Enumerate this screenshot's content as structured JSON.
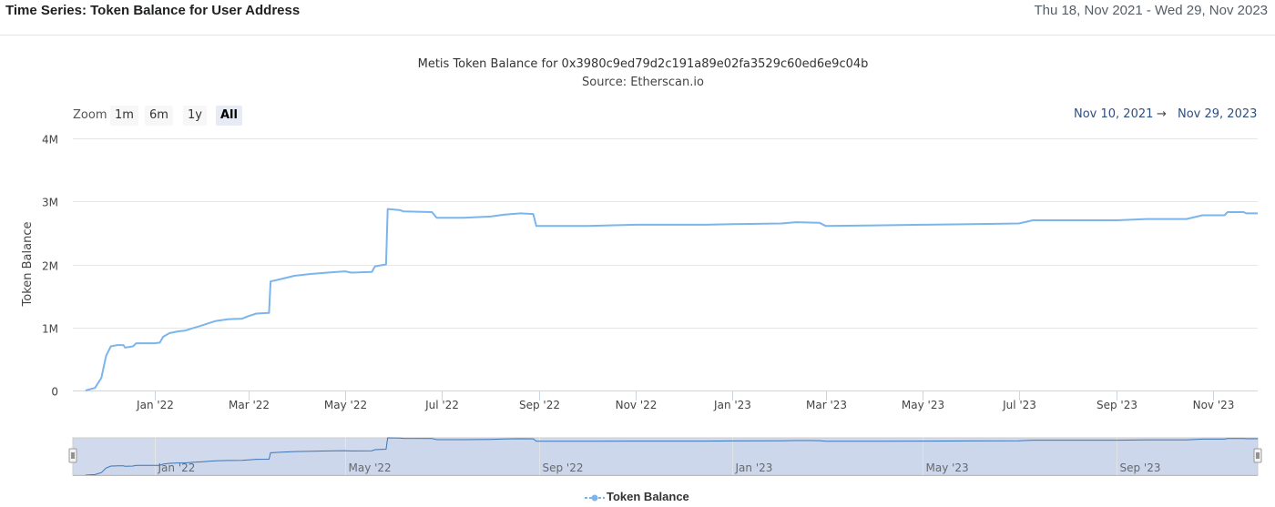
{
  "header": {
    "title": "Time Series: Token Balance for User Address",
    "date_range": "Thu 18, Nov 2021 - Wed 29, Nov 2023"
  },
  "range_selector": {
    "zoom_label": "Zoom",
    "buttons": [
      "1m",
      "6m",
      "1y",
      "All"
    ],
    "active": "All",
    "from": "Nov 10, 2021",
    "arrow": "→",
    "to": "Nov 29, 2023"
  },
  "colors": {
    "series": "#7cb5ec",
    "navigator_fill": "#ccd6eb",
    "grid": "#e6e6e6"
  },
  "chart_data": {
    "type": "line",
    "title": "Metis Token Balance for 0x3980c9ed79d2c191a89e02fa3529c60ed6e9c04b",
    "subtitle": "Source: Etherscan.io",
    "ylabel": "Token Balance",
    "xlabel": "",
    "ylim": [
      0,
      4000000
    ],
    "xlim": [
      "2021-11-10",
      "2023-11-29"
    ],
    "y_ticks": [
      {
        "value": 0,
        "label": "0"
      },
      {
        "value": 1000000,
        "label": "1M"
      },
      {
        "value": 2000000,
        "label": "2M"
      },
      {
        "value": 3000000,
        "label": "3M"
      },
      {
        "value": 4000000,
        "label": "4M"
      }
    ],
    "x_ticks": [
      {
        "date": "2022-01-01",
        "label": "Jan '22"
      },
      {
        "date": "2022-03-01",
        "label": "Mar '22"
      },
      {
        "date": "2022-05-01",
        "label": "May '22"
      },
      {
        "date": "2022-07-01",
        "label": "Jul '22"
      },
      {
        "date": "2022-09-01",
        "label": "Sep '22"
      },
      {
        "date": "2022-11-01",
        "label": "Nov '22"
      },
      {
        "date": "2023-01-01",
        "label": "Jan '23"
      },
      {
        "date": "2023-03-01",
        "label": "Mar '23"
      },
      {
        "date": "2023-05-01",
        "label": "May '23"
      },
      {
        "date": "2023-07-01",
        "label": "Jul '23"
      },
      {
        "date": "2023-09-01",
        "label": "Sep '23"
      },
      {
        "date": "2023-11-01",
        "label": "Nov '23"
      }
    ],
    "navigator_ticks": [
      {
        "date": "2022-01-01",
        "label": "Jan '22"
      },
      {
        "date": "2022-05-01",
        "label": "May '22"
      },
      {
        "date": "2022-09-01",
        "label": "Sep '22"
      },
      {
        "date": "2023-01-01",
        "label": "Jan '23"
      },
      {
        "date": "2023-05-01",
        "label": "May '23"
      },
      {
        "date": "2023-09-01",
        "label": "Sep '23"
      }
    ],
    "grid": true,
    "legend": "bottom-center",
    "series": [
      {
        "name": "Token Balance",
        "points": [
          [
            "2021-11-18",
            0
          ],
          [
            "2021-11-24",
            40000
          ],
          [
            "2021-11-28",
            200000
          ],
          [
            "2021-12-01",
            550000
          ],
          [
            "2021-12-04",
            700000
          ],
          [
            "2021-12-08",
            720000
          ],
          [
            "2021-12-12",
            720000
          ],
          [
            "2021-12-13",
            680000
          ],
          [
            "2021-12-18",
            700000
          ],
          [
            "2021-12-20",
            750000
          ],
          [
            "2022-01-01",
            750000
          ],
          [
            "2022-01-04",
            760000
          ],
          [
            "2022-01-06",
            850000
          ],
          [
            "2022-01-10",
            910000
          ],
          [
            "2022-01-16",
            940000
          ],
          [
            "2022-01-20",
            950000
          ],
          [
            "2022-01-25",
            990000
          ],
          [
            "2022-01-29",
            1020000
          ],
          [
            "2022-02-03",
            1060000
          ],
          [
            "2022-02-08",
            1100000
          ],
          [
            "2022-02-16",
            1130000
          ],
          [
            "2022-02-25",
            1140000
          ],
          [
            "2022-03-01",
            1180000
          ],
          [
            "2022-03-06",
            1220000
          ],
          [
            "2022-03-14",
            1230000
          ],
          [
            "2022-03-15",
            1730000
          ],
          [
            "2022-03-22",
            1770000
          ],
          [
            "2022-03-30",
            1820000
          ],
          [
            "2022-04-10",
            1850000
          ],
          [
            "2022-04-20",
            1870000
          ],
          [
            "2022-05-01",
            1890000
          ],
          [
            "2022-05-05",
            1870000
          ],
          [
            "2022-05-18",
            1880000
          ],
          [
            "2022-05-20",
            1970000
          ],
          [
            "2022-05-27",
            2000000
          ],
          [
            "2022-05-28",
            2880000
          ],
          [
            "2022-06-05",
            2860000
          ],
          [
            "2022-06-07",
            2840000
          ],
          [
            "2022-06-25",
            2830000
          ],
          [
            "2022-06-28",
            2740000
          ],
          [
            "2022-07-15",
            2740000
          ],
          [
            "2022-08-01",
            2760000
          ],
          [
            "2022-08-10",
            2790000
          ],
          [
            "2022-08-20",
            2810000
          ],
          [
            "2022-08-28",
            2800000
          ],
          [
            "2022-08-30",
            2610000
          ],
          [
            "2022-10-01",
            2610000
          ],
          [
            "2022-11-01",
            2630000
          ],
          [
            "2022-12-15",
            2630000
          ],
          [
            "2023-01-01",
            2640000
          ],
          [
            "2023-02-01",
            2650000
          ],
          [
            "2023-02-10",
            2670000
          ],
          [
            "2023-02-25",
            2660000
          ],
          [
            "2023-03-01",
            2610000
          ],
          [
            "2023-04-01",
            2620000
          ],
          [
            "2023-05-01",
            2630000
          ],
          [
            "2023-06-01",
            2640000
          ],
          [
            "2023-07-01",
            2650000
          ],
          [
            "2023-07-10",
            2700000
          ],
          [
            "2023-08-01",
            2700000
          ],
          [
            "2023-09-01",
            2700000
          ],
          [
            "2023-09-20",
            2720000
          ],
          [
            "2023-10-15",
            2720000
          ],
          [
            "2023-10-25",
            2780000
          ],
          [
            "2023-11-08",
            2780000
          ],
          [
            "2023-11-10",
            2830000
          ],
          [
            "2023-11-20",
            2830000
          ],
          [
            "2023-11-22",
            2810000
          ],
          [
            "2023-11-29",
            2810000
          ]
        ]
      }
    ]
  }
}
